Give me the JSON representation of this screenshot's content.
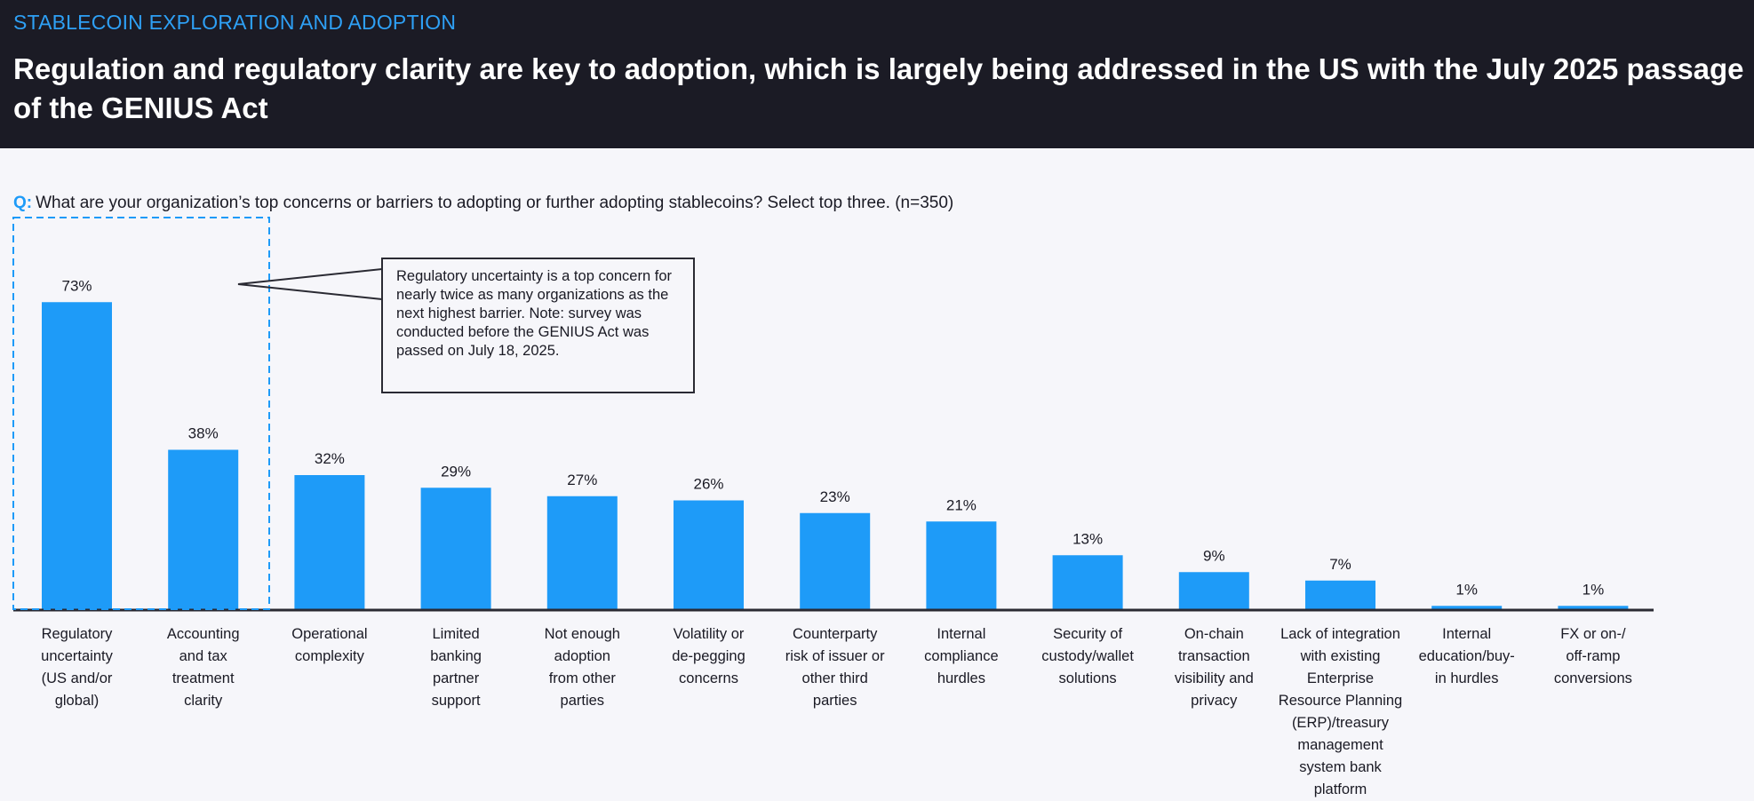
{
  "header": {
    "kicker": "STABLECOIN EXPLORATION AND ADOPTION",
    "title": "Regulation and regulatory clarity are key to adoption, which is largely being addressed in the US with the July 2025 passage of the GENIUS Act"
  },
  "question": {
    "prefix": "Q:",
    "text": "What are your organization’s top concerns or barriers to adopting or further adopting stablecoins? Select top three. (n=350)"
  },
  "callout": {
    "text": "Regulatory uncertainty is a top concern for nearly twice as many organizations as the next highest barrier. Note: survey was conducted before the GENIUS Act was passed on July 18, 2025."
  },
  "colors": {
    "bar": "#1e9bf8",
    "header_bg": "#1b1b25",
    "accent": "#2ea0f5",
    "highlight_box": "#1e9bf8"
  },
  "chart_data": {
    "type": "bar",
    "ylim": [
      0,
      75
    ],
    "grid": false,
    "unit": "%",
    "highlighted_categories": [
      0,
      1
    ],
    "categories": [
      "Regulatory uncertainty (US and/or global)",
      "Accounting and tax treatment clarity",
      "Operational complexity",
      "Limited banking partner support",
      "Not enough adoption from other parties",
      "Volatility or de-pegging concerns",
      "Counterparty risk of issuer or other third parties",
      "Internal compliance hurdles",
      "Security of custody/wallet solutions",
      "On-chain transaction visibility and privacy",
      "Lack of integration with existing Enterprise Resource Planning (ERP)/treasury management system bank platform",
      "Internal education/buy-in hurdles",
      "FX or on-/off-ramp conversions"
    ],
    "category_lines": [
      [
        "Regulatory",
        "uncertainty",
        "(US and/or",
        "global)"
      ],
      [
        "Accounting",
        "and tax",
        "treatment",
        "clarity"
      ],
      [
        "Operational",
        "complexity"
      ],
      [
        "Limited",
        "banking",
        "partner",
        "support"
      ],
      [
        "Not enough",
        "adoption",
        "from other",
        "parties"
      ],
      [
        "Volatility or",
        "de-pegging",
        "concerns"
      ],
      [
        "Counterparty",
        "risk of issuer or",
        "other third",
        "parties"
      ],
      [
        "Internal",
        "compliance",
        "hurdles"
      ],
      [
        "Security of",
        "custody/wallet",
        "solutions"
      ],
      [
        "On-chain",
        "transaction",
        "visibility and",
        "privacy"
      ],
      [
        "Lack of integration",
        "with existing",
        "Enterprise",
        "Resource Planning",
        "(ERP)/treasury",
        "management",
        "system bank",
        "platform"
      ],
      [
        "Internal",
        "education/buy-",
        "in hurdles"
      ],
      [
        "FX or on-/",
        "off-ramp",
        "conversions"
      ]
    ],
    "values": [
      73,
      38,
      32,
      29,
      27,
      26,
      23,
      21,
      13,
      9,
      7,
      1,
      1
    ],
    "labels": [
      "73%",
      "38%",
      "32%",
      "29%",
      "27%",
      "26%",
      "23%",
      "21%",
      "13%",
      "9%",
      "7%",
      "1%",
      "1%"
    ]
  }
}
